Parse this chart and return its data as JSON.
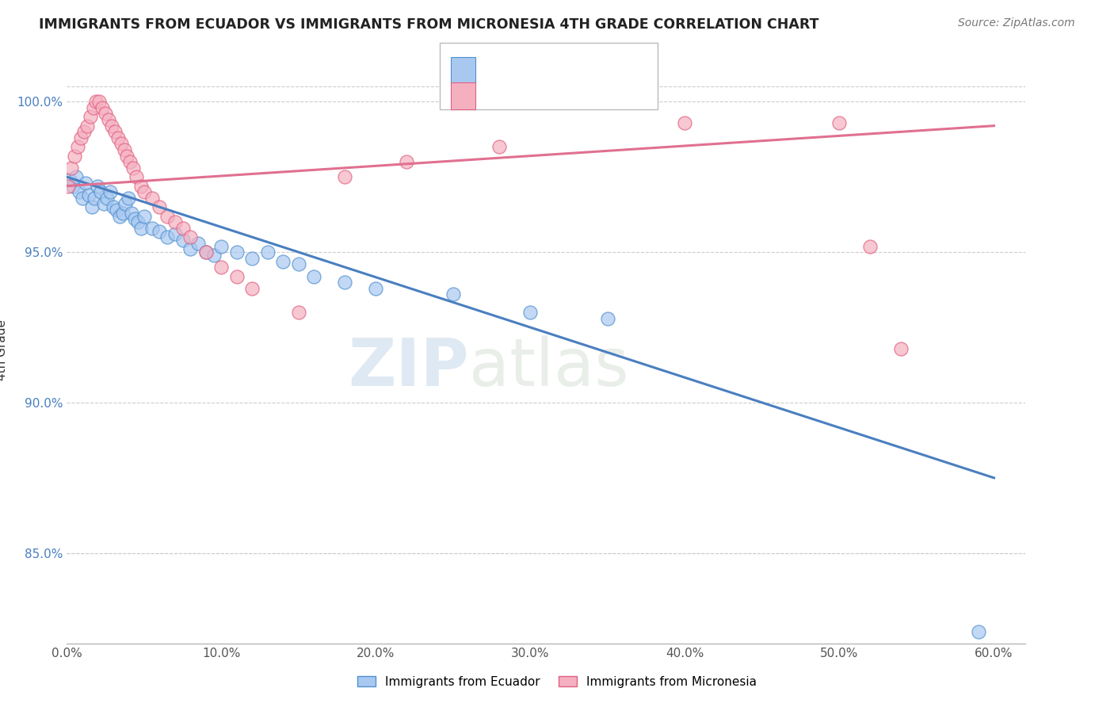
{
  "title": "IMMIGRANTS FROM ECUADOR VS IMMIGRANTS FROM MICRONESIA 4TH GRADE CORRELATION CHART",
  "source": "Source: ZipAtlas.com",
  "xlabel_ticks": [
    "0.0%",
    "10.0%",
    "20.0%",
    "30.0%",
    "40.0%",
    "50.0%",
    "60.0%"
  ],
  "xlabel_vals": [
    0.0,
    0.1,
    0.2,
    0.3,
    0.4,
    0.5,
    0.6
  ],
  "ytick_vals": [
    0.85,
    0.9,
    0.95,
    1.0
  ],
  "ytick_labels": [
    "85.0%",
    "90.0%",
    "95.0%",
    "100.0%"
  ],
  "xlim": [
    0.0,
    0.62
  ],
  "ylim": [
    0.82,
    1.015
  ],
  "ylabel": "4th Grade",
  "color_ecuador": "#a8c8f0",
  "color_ecuador_edge": "#5090d0",
  "color_micronesia": "#f5b0c0",
  "color_micronesia_edge": "#e06080",
  "color_ecuador_line": "#4a7fc0",
  "color_micronesia_line": "#e07090",
  "ecuador_scatter_x": [
    0.002,
    0.004,
    0.006,
    0.008,
    0.01,
    0.012,
    0.014,
    0.016,
    0.018,
    0.02,
    0.022,
    0.024,
    0.026,
    0.028,
    0.03,
    0.032,
    0.034,
    0.036,
    0.038,
    0.04,
    0.042,
    0.044,
    0.046,
    0.048,
    0.05,
    0.055,
    0.06,
    0.065,
    0.07,
    0.075,
    0.08,
    0.085,
    0.09,
    0.095,
    0.1,
    0.11,
    0.12,
    0.13,
    0.14,
    0.15,
    0.16,
    0.18,
    0.2,
    0.25,
    0.3,
    0.35,
    0.59
  ],
  "ecuador_scatter_y": [
    0.974,
    0.972,
    0.975,
    0.97,
    0.968,
    0.973,
    0.969,
    0.965,
    0.968,
    0.972,
    0.97,
    0.966,
    0.968,
    0.97,
    0.965,
    0.964,
    0.962,
    0.963,
    0.966,
    0.968,
    0.963,
    0.961,
    0.96,
    0.958,
    0.962,
    0.958,
    0.957,
    0.955,
    0.956,
    0.954,
    0.951,
    0.953,
    0.95,
    0.949,
    0.952,
    0.95,
    0.948,
    0.95,
    0.947,
    0.946,
    0.942,
    0.94,
    0.938,
    0.936,
    0.93,
    0.928,
    0.824
  ],
  "micronesia_scatter_x": [
    0.001,
    0.003,
    0.005,
    0.007,
    0.009,
    0.011,
    0.013,
    0.015,
    0.017,
    0.019,
    0.021,
    0.023,
    0.025,
    0.027,
    0.029,
    0.031,
    0.033,
    0.035,
    0.037,
    0.039,
    0.041,
    0.043,
    0.045,
    0.048,
    0.05,
    0.055,
    0.06,
    0.065,
    0.07,
    0.075,
    0.08,
    0.09,
    0.1,
    0.11,
    0.12,
    0.15,
    0.18,
    0.22,
    0.28,
    0.4,
    0.5,
    0.52,
    0.54
  ],
  "micronesia_scatter_y": [
    0.972,
    0.978,
    0.982,
    0.985,
    0.988,
    0.99,
    0.992,
    0.995,
    0.998,
    1.0,
    1.0,
    0.998,
    0.996,
    0.994,
    0.992,
    0.99,
    0.988,
    0.986,
    0.984,
    0.982,
    0.98,
    0.978,
    0.975,
    0.972,
    0.97,
    0.968,
    0.965,
    0.962,
    0.96,
    0.958,
    0.955,
    0.95,
    0.945,
    0.942,
    0.938,
    0.93,
    0.975,
    0.98,
    0.985,
    0.993,
    0.993,
    0.952,
    0.918
  ],
  "ecuador_trend_x": [
    0.0,
    0.6
  ],
  "ecuador_trend_y": [
    0.975,
    0.875
  ],
  "micronesia_trend_x": [
    0.0,
    0.6
  ],
  "micronesia_trend_y": [
    0.972,
    0.992
  ]
}
